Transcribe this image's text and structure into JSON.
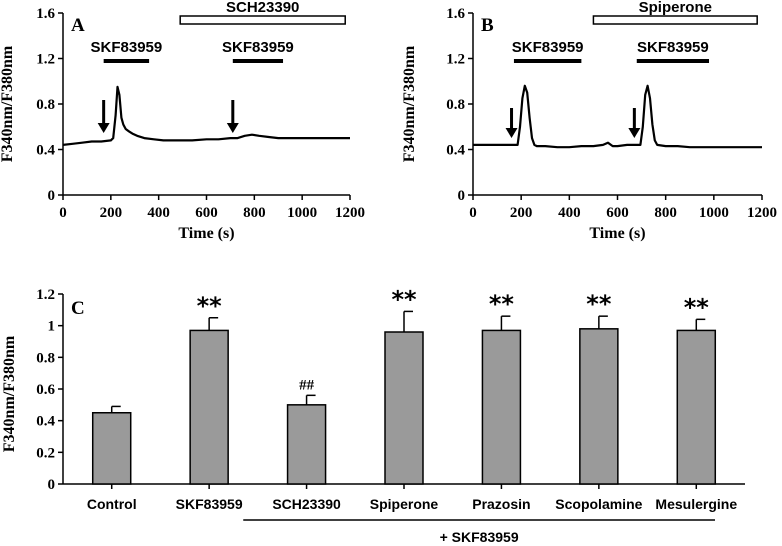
{
  "chart_data": [
    {
      "panel": "A",
      "type": "line",
      "xlabel": "Time (s)",
      "ylabel": "F340nm/F380nm",
      "xlim": [
        0,
        1200
      ],
      "ylim": [
        0,
        1.6
      ],
      "x_ticks": [
        "0",
        "200",
        "400",
        "600",
        "800",
        "1000",
        "1200"
      ],
      "y_ticks": [
        "0",
        "0.4",
        "0.8",
        "1.2",
        "1.6"
      ],
      "drug_bars": [
        {
          "label": "SKF83959",
          "start": 170,
          "end": 360
        },
        {
          "label": "SKF83959",
          "start": 710,
          "end": 920
        }
      ],
      "open_bar": {
        "label": "SCH23390",
        "start": 490,
        "end": 1180
      },
      "arrows": [
        170,
        710
      ],
      "series": [
        {
          "name": "trace",
          "x": [
            0,
            40,
            80,
            120,
            160,
            200,
            210,
            220,
            228,
            236,
            244,
            252,
            262,
            275,
            290,
            310,
            340,
            380,
            420,
            480,
            540,
            600,
            650,
            700,
            730,
            760,
            790,
            820,
            860,
            900,
            950,
            1000,
            1050,
            1100,
            1150,
            1200
          ],
          "y": [
            0.44,
            0.45,
            0.46,
            0.47,
            0.47,
            0.48,
            0.5,
            0.7,
            0.95,
            0.88,
            0.68,
            0.62,
            0.58,
            0.56,
            0.54,
            0.52,
            0.5,
            0.49,
            0.48,
            0.48,
            0.48,
            0.49,
            0.49,
            0.5,
            0.5,
            0.52,
            0.53,
            0.52,
            0.51,
            0.5,
            0.5,
            0.5,
            0.5,
            0.5,
            0.5,
            0.5
          ]
        }
      ]
    },
    {
      "panel": "B",
      "type": "line",
      "xlabel": "Time (s)",
      "ylabel": "F340nm/F380nm",
      "xlim": [
        0,
        1200
      ],
      "ylim": [
        0,
        1.6
      ],
      "x_ticks": [
        "0",
        "200",
        "400",
        "600",
        "800",
        "1000",
        "1200"
      ],
      "y_ticks": [
        "0",
        "0.4",
        "0.8",
        "1.2",
        "1.6"
      ],
      "drug_bars": [
        {
          "label": "SKF83959",
          "start": 170,
          "end": 450
        },
        {
          "label": "SKF83959",
          "start": 680,
          "end": 980
        }
      ],
      "open_bar": {
        "label": "Spiperone",
        "start": 500,
        "end": 1180
      },
      "arrows": [
        160,
        670
      ],
      "series": [
        {
          "name": "trace",
          "x": [
            0,
            50,
            100,
            150,
            185,
            195,
            205,
            215,
            225,
            235,
            245,
            255,
            265,
            300,
            350,
            400,
            450,
            500,
            540,
            560,
            580,
            600,
            640,
            680,
            695,
            705,
            715,
            725,
            735,
            745,
            755,
            765,
            800,
            850,
            900,
            1000,
            1100,
            1200
          ],
          "y": [
            0.44,
            0.44,
            0.44,
            0.44,
            0.44,
            0.6,
            0.85,
            0.96,
            0.9,
            0.68,
            0.5,
            0.44,
            0.43,
            0.43,
            0.42,
            0.42,
            0.43,
            0.43,
            0.44,
            0.46,
            0.43,
            0.43,
            0.44,
            0.44,
            0.44,
            0.6,
            0.88,
            0.96,
            0.85,
            0.62,
            0.48,
            0.44,
            0.43,
            0.43,
            0.42,
            0.42,
            0.42,
            0.42
          ]
        }
      ]
    },
    {
      "panel": "C",
      "type": "bar",
      "ylabel": "F340nm/F380nm",
      "ylim": [
        0,
        1.2
      ],
      "y_ticks": [
        "0",
        "0.2",
        "0.4",
        "0.6",
        "0.8",
        "1",
        "1.2"
      ],
      "categories": [
        "Control",
        "SKF83959",
        "SCH23390",
        "Spiperone",
        "Prazosin",
        "Scopolamine",
        "Mesulergine"
      ],
      "values": [
        0.45,
        0.97,
        0.5,
        0.96,
        0.97,
        0.98,
        0.97
      ],
      "errors": [
        0.04,
        0.08,
        0.06,
        0.13,
        0.09,
        0.08,
        0.07
      ],
      "annotations": [
        "",
        "**",
        "##",
        "**",
        "**",
        "**",
        "**"
      ],
      "group_label": "+ SKF83959"
    }
  ]
}
